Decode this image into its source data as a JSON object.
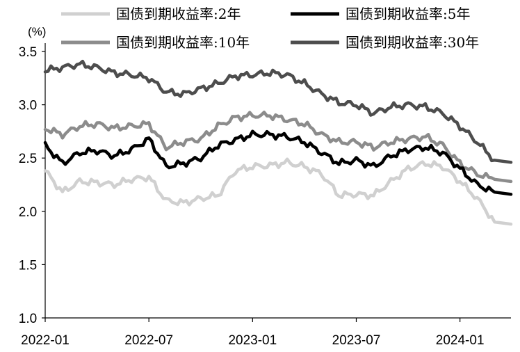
{
  "chart_data": {
    "type": "line",
    "title": "",
    "xlabel": "",
    "ylabel": "(%)",
    "ylim": [
      1.0,
      3.5
    ],
    "yticks": [
      "3.5",
      "3.0",
      "2.5",
      "2.0",
      "1.5",
      "1.0"
    ],
    "xticks": [
      "2022-01",
      "2022-07",
      "2023-01",
      "2023-07",
      "2024-01"
    ],
    "x_range": [
      "2022-01",
      "2024-03"
    ],
    "grid": false,
    "legend": "top",
    "series": [
      {
        "name": "国债到期收益率:2年",
        "color": "#d0d0d0",
        "x": [
          "2022-01",
          "2022-02",
          "2022-03",
          "2022-04",
          "2022-05",
          "2022-06",
          "2022-07",
          "2022-08",
          "2022-09",
          "2022-10",
          "2022-11",
          "2022-12",
          "2023-01",
          "2023-02",
          "2023-03",
          "2023-04",
          "2023-05",
          "2023-06",
          "2023-07",
          "2023-08",
          "2023-09",
          "2023-10",
          "2023-11",
          "2023-12",
          "2024-01",
          "2024-02",
          "2024-03"
        ],
        "values": [
          2.38,
          2.18,
          2.28,
          2.27,
          2.25,
          2.3,
          2.32,
          2.1,
          2.08,
          2.12,
          2.15,
          2.38,
          2.42,
          2.43,
          2.46,
          2.42,
          2.35,
          2.15,
          2.16,
          2.15,
          2.28,
          2.4,
          2.45,
          2.42,
          2.28,
          2.12,
          1.9
        ]
      },
      {
        "name": "国债到期收益率:5年",
        "color": "#000000",
        "x": [
          "2022-01",
          "2022-02",
          "2022-03",
          "2022-04",
          "2022-05",
          "2022-06",
          "2022-07",
          "2022-08",
          "2022-09",
          "2022-10",
          "2022-11",
          "2022-12",
          "2023-01",
          "2023-02",
          "2023-03",
          "2023-04",
          "2023-05",
          "2023-06",
          "2023-07",
          "2023-08",
          "2023-09",
          "2023-10",
          "2023-11",
          "2023-12",
          "2024-01",
          "2024-02",
          "2024-03"
        ],
        "values": [
          2.62,
          2.45,
          2.55,
          2.57,
          2.52,
          2.58,
          2.68,
          2.42,
          2.45,
          2.5,
          2.62,
          2.67,
          2.72,
          2.72,
          2.7,
          2.65,
          2.55,
          2.45,
          2.48,
          2.42,
          2.52,
          2.58,
          2.6,
          2.55,
          2.4,
          2.25,
          2.18
        ]
      },
      {
        "name": "国债到期收益率:10年",
        "color": "#8c8c8c",
        "x": [
          "2022-01",
          "2022-02",
          "2022-03",
          "2022-04",
          "2022-05",
          "2022-06",
          "2022-07",
          "2022-08",
          "2022-09",
          "2022-10",
          "2022-11",
          "2022-12",
          "2023-01",
          "2023-02",
          "2023-03",
          "2023-04",
          "2023-05",
          "2023-06",
          "2023-07",
          "2023-08",
          "2023-09",
          "2023-10",
          "2023-11",
          "2023-12",
          "2024-01",
          "2024-02",
          "2024-03"
        ],
        "values": [
          2.78,
          2.72,
          2.8,
          2.82,
          2.78,
          2.8,
          2.82,
          2.6,
          2.65,
          2.68,
          2.8,
          2.88,
          2.9,
          2.9,
          2.86,
          2.82,
          2.72,
          2.65,
          2.65,
          2.6,
          2.65,
          2.68,
          2.7,
          2.62,
          2.45,
          2.35,
          2.3
        ]
      },
      {
        "name": "国债到期收益率:30年",
        "color": "#4d4d4d",
        "x": [
          "2022-01",
          "2022-02",
          "2022-03",
          "2022-04",
          "2022-05",
          "2022-06",
          "2022-07",
          "2022-08",
          "2022-09",
          "2022-10",
          "2022-11",
          "2022-12",
          "2023-01",
          "2023-02",
          "2023-03",
          "2023-04",
          "2023-05",
          "2023-06",
          "2023-07",
          "2023-08",
          "2023-09",
          "2023-10",
          "2023-11",
          "2023-12",
          "2024-01",
          "2024-02",
          "2024-03"
        ],
        "values": [
          3.32,
          3.35,
          3.38,
          3.35,
          3.3,
          3.28,
          3.25,
          3.12,
          3.1,
          3.15,
          3.2,
          3.27,
          3.28,
          3.3,
          3.28,
          3.2,
          3.1,
          3.02,
          3.0,
          2.92,
          2.98,
          3.0,
          2.98,
          2.92,
          2.8,
          2.65,
          2.48
        ]
      }
    ]
  }
}
